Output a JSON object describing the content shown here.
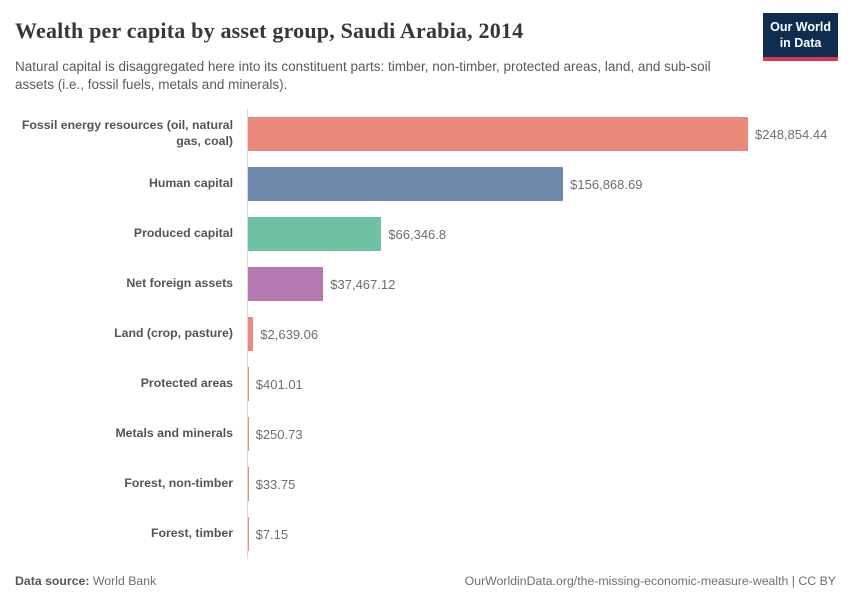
{
  "header": {
    "title": "Wealth per capita by asset group, Saudi Arabia, 2014",
    "subtitle": "Natural capital is disaggregated here into its constituent parts: timber, non-timber, protected areas, land, and sub-soil assets (i.e., fossil fuels, metals and minerals).",
    "logo": {
      "line1": "Our World",
      "line2": "in Data"
    }
  },
  "chart_data": {
    "type": "bar",
    "orientation": "horizontal",
    "title": "Wealth per capita by asset group, Saudi Arabia, 2014",
    "categories": [
      "Fossil energy resources (oil, natural gas, coal)",
      "Human capital",
      "Produced capital",
      "Net foreign assets",
      "Land (crop, pasture)",
      "Protected areas",
      "Metals and minerals",
      "Forest, non-timber",
      "Forest, timber"
    ],
    "values": [
      248854.44,
      156868.69,
      66346.8,
      37467.12,
      2639.06,
      401.01,
      250.73,
      33.75,
      7.15
    ],
    "value_labels": [
      "$248,854.44",
      "$156,868.69",
      "$66,346.8",
      "$37,467.12",
      "$2,639.06",
      "$401.01",
      "$250.73",
      "$33.75",
      "$7.15"
    ],
    "bar_colors": [
      "#eb8a7b",
      "#6e88ac",
      "#6fc1a2",
      "#b579b1",
      "#eb8a7b",
      "#eb8a7b",
      "#eb8a7b",
      "#eb8a7b",
      "#eb8a7b"
    ],
    "xlim": [
      0,
      248854.44
    ],
    "grid": false,
    "legend": false,
    "axis_color": "#d9d9d9"
  },
  "footer": {
    "source_label": "Data source:",
    "source_value": "World Bank",
    "attribution": "OurWorldinData.org/the-missing-economic-measure-wealth | CC BY"
  },
  "colors": {
    "logo_navy": "#0f2d51",
    "logo_red": "#dd354c",
    "salmon": "#eb8a7b",
    "blue": "#6e88ac",
    "green": "#6fc1a2",
    "purple": "#b579b1"
  }
}
